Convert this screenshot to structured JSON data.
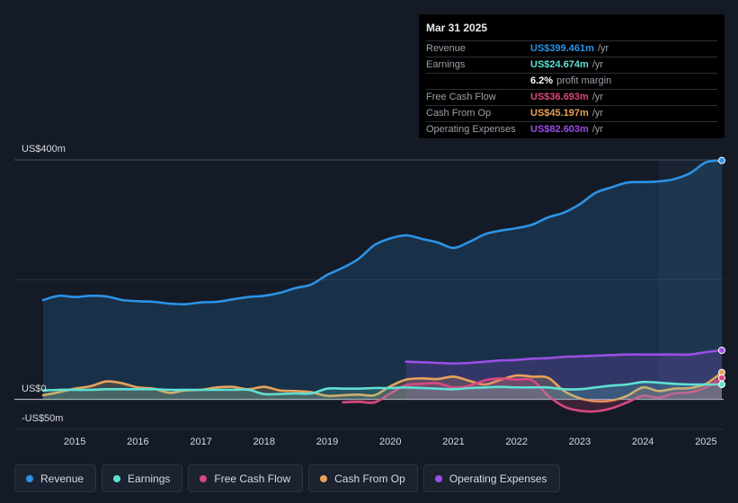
{
  "tooltip": {
    "date": "Mar 31 2025",
    "rows": [
      {
        "label": "Revenue",
        "value": "US$399.461m",
        "unit": "/yr",
        "color": "#2b93e6"
      },
      {
        "label": "Earnings",
        "value": "US$24.674m",
        "unit": "/yr",
        "color": "#5fe0d4"
      },
      {
        "label": "",
        "value": "6.2%",
        "unit": "profit margin",
        "color": "#ffffff"
      },
      {
        "label": "Free Cash Flow",
        "value": "US$36.693m",
        "unit": "/yr",
        "color": "#d9487f"
      },
      {
        "label": "Cash From Op",
        "value": "US$45.197m",
        "unit": "/yr",
        "color": "#e8a25a"
      },
      {
        "label": "Operating Expenses",
        "value": "US$82.603m",
        "unit": "/yr",
        "color": "#9b4ee6"
      }
    ]
  },
  "legend": [
    {
      "label": "Revenue",
      "color": "#2b93e6"
    },
    {
      "label": "Earnings",
      "color": "#5fe0d4"
    },
    {
      "label": "Free Cash Flow",
      "color": "#d9487f"
    },
    {
      "label": "Cash From Op",
      "color": "#e8a25a"
    },
    {
      "label": "Operating Expenses",
      "color": "#9b4ee6"
    }
  ],
  "chart_data": {
    "type": "area",
    "y_labels": {
      "top": "US$400m",
      "zero": "US$0",
      "bottom": "-US$50m"
    },
    "ylim": [
      -50,
      400
    ],
    "xlim": [
      2014.5,
      2025.25
    ],
    "x_ticks": [
      "2015",
      "2016",
      "2017",
      "2018",
      "2019",
      "2020",
      "2021",
      "2022",
      "2023",
      "2024",
      "2025"
    ],
    "x_tick_values": [
      2015,
      2016,
      2017,
      2018,
      2019,
      2020,
      2021,
      2022,
      2023,
      2024,
      2025
    ],
    "forecast_start": 2024.25,
    "series": [
      {
        "name": "Revenue",
        "color": "#2b93e6",
        "fill": true,
        "x": [
          2014.5,
          2014.75,
          2015,
          2015.25,
          2015.5,
          2015.75,
          2016,
          2016.25,
          2016.5,
          2016.75,
          2017,
          2017.25,
          2017.5,
          2017.75,
          2018,
          2018.25,
          2018.5,
          2018.75,
          2019,
          2019.25,
          2019.5,
          2019.75,
          2020,
          2020.25,
          2020.5,
          2020.75,
          2021,
          2021.25,
          2021.5,
          2021.75,
          2022,
          2022.25,
          2022.5,
          2022.75,
          2023,
          2023.25,
          2023.5,
          2023.75,
          2024,
          2024.25,
          2024.5,
          2024.75,
          2025,
          2025.25
        ],
        "values": [
          166,
          173,
          171,
          173,
          172,
          166,
          164,
          163,
          160,
          159,
          162,
          163,
          167,
          171,
          173,
          178,
          186,
          192,
          208,
          220,
          235,
          258,
          269,
          274,
          268,
          262,
          253,
          263,
          276,
          282,
          286,
          292,
          304,
          312,
          326,
          345,
          354,
          362,
          363,
          364,
          368,
          378,
          396,
          399
        ]
      },
      {
        "name": "Operating Expenses",
        "color": "#9b4ee6",
        "fill": true,
        "x": [
          2020.25,
          2020.5,
          2020.75,
          2021,
          2021.25,
          2021.5,
          2021.75,
          2022,
          2022.25,
          2022.5,
          2022.75,
          2023,
          2023.25,
          2023.5,
          2023.75,
          2024,
          2024.25,
          2024.5,
          2024.75,
          2025,
          2025.25
        ],
        "values": [
          63,
          62,
          61,
          60,
          61,
          63,
          65,
          66,
          68,
          69,
          71,
          72,
          73,
          74,
          75,
          75,
          75,
          75,
          75,
          79,
          82
        ]
      },
      {
        "name": "Cash From Op",
        "color": "#e8a25a",
        "fill": true,
        "x": [
          2014.5,
          2014.75,
          2015,
          2015.25,
          2015.5,
          2015.75,
          2016,
          2016.25,
          2016.5,
          2016.75,
          2017,
          2017.25,
          2017.5,
          2017.75,
          2018,
          2018.25,
          2018.5,
          2018.75,
          2019,
          2019.25,
          2019.5,
          2019.75,
          2020,
          2020.25,
          2020.5,
          2020.75,
          2021,
          2021.25,
          2021.5,
          2021.75,
          2022,
          2022.25,
          2022.5,
          2022.75,
          2023,
          2023.25,
          2023.5,
          2023.75,
          2024,
          2024.25,
          2024.5,
          2024.75,
          2025,
          2025.25
        ],
        "values": [
          7,
          12,
          18,
          22,
          30,
          27,
          20,
          18,
          11,
          15,
          16,
          20,
          21,
          17,
          21,
          15,
          14,
          12,
          6,
          7,
          8,
          7,
          22,
          33,
          35,
          34,
          38,
          31,
          25,
          33,
          40,
          38,
          36,
          14,
          2,
          -3,
          -2,
          6,
          20,
          14,
          18,
          19,
          26,
          45
        ]
      },
      {
        "name": "Free Cash Flow",
        "color": "#d9487f",
        "fill": true,
        "x": [
          2019.25,
          2019.5,
          2019.75,
          2020,
          2020.25,
          2020.5,
          2020.75,
          2021,
          2021.25,
          2021.5,
          2021.75,
          2022,
          2022.25,
          2022.5,
          2022.75,
          2023,
          2023.25,
          2023.5,
          2023.75,
          2024,
          2024.25,
          2024.5,
          2024.75,
          2025,
          2025.25
        ],
        "values": [
          -5,
          -4,
          -5,
          10,
          24,
          26,
          27,
          20,
          23,
          32,
          35,
          33,
          32,
          6,
          -12,
          -19,
          -20,
          -15,
          -5,
          6,
          3,
          10,
          12,
          20,
          36
        ]
      },
      {
        "name": "Earnings",
        "color": "#5fe0d4",
        "fill": true,
        "x": [
          2014.5,
          2014.75,
          2015,
          2015.25,
          2015.5,
          2015.75,
          2016,
          2016.25,
          2016.5,
          2016.75,
          2017,
          2017.25,
          2017.5,
          2017.75,
          2018,
          2018.25,
          2018.5,
          2018.75,
          2019,
          2019.25,
          2019.5,
          2019.75,
          2020,
          2020.25,
          2020.5,
          2020.75,
          2021,
          2021.25,
          2021.5,
          2021.75,
          2022,
          2022.25,
          2022.5,
          2022.75,
          2023,
          2023.25,
          2023.5,
          2023.75,
          2024,
          2024.25,
          2024.5,
          2024.75,
          2025,
          2025.25
        ],
        "values": [
          15,
          16,
          16,
          16,
          17,
          17,
          17,
          17,
          16,
          16,
          16,
          16,
          16,
          16,
          9,
          9,
          10,
          10,
          18,
          18,
          18,
          19,
          19,
          20,
          19,
          18,
          17,
          19,
          20,
          21,
          20,
          20,
          20,
          17,
          17,
          20,
          23,
          25,
          29,
          28,
          26,
          25,
          25,
          25
        ]
      }
    ]
  }
}
